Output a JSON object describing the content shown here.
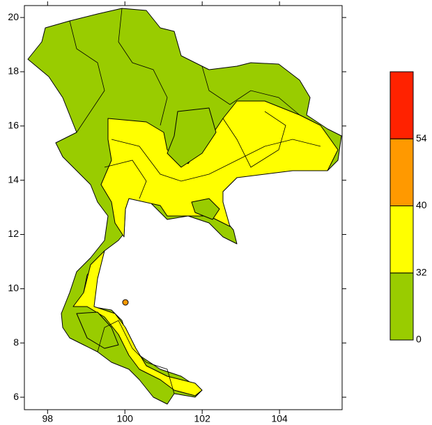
{
  "map": {
    "xlim": [
      97.4,
      105.62
    ],
    "ylim": [
      5.54,
      20.44
    ],
    "xticks": [
      98,
      100,
      102,
      104
    ],
    "yticks": [
      6,
      8,
      10,
      12,
      14,
      16,
      18,
      20
    ]
  },
  "colorbar": {
    "levels": [
      0,
      32,
      40,
      54
    ],
    "colors": [
      "#99cc00",
      "#ffff00",
      "#ff9900",
      "#ff2200"
    ]
  }
}
